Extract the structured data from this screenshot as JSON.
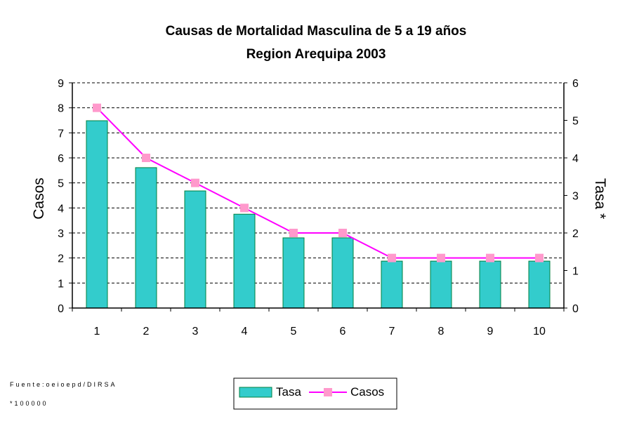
{
  "chart_data": {
    "type": "bar",
    "title": "Causas de Mortalidad Masculina de 5 a 19 años",
    "subtitle": "Region Arequipa 2003",
    "categories": [
      "1",
      "2",
      "3",
      "4",
      "5",
      "6",
      "7",
      "8",
      "9",
      "10"
    ],
    "series": [
      {
        "name": "Tasa",
        "type": "bar",
        "axis": "right",
        "color": "#33CCCC",
        "values": [
          4.99,
          3.74,
          3.12,
          2.5,
          1.87,
          1.87,
          1.25,
          1.25,
          1.25,
          1.25
        ]
      },
      {
        "name": "Casos",
        "type": "line",
        "axis": "left",
        "color": "#FF00FF",
        "marker_color": "#FF99CC",
        "values": [
          8,
          6,
          5,
          4,
          3,
          3,
          2,
          2,
          2,
          2
        ]
      }
    ],
    "ylabel": "Casos",
    "y2label": "Tasa *",
    "ylim": [
      0,
      9
    ],
    "y2lim": [
      0,
      6
    ],
    "yticks": [
      "0",
      "1",
      "2",
      "3",
      "4",
      "5",
      "6",
      "7",
      "8",
      "9"
    ],
    "y2ticks": [
      "0",
      "1",
      "2",
      "3",
      "4",
      "5",
      "6"
    ],
    "grid": true,
    "legend": "bottom"
  },
  "footnotes": {
    "source": "Fuente:oeioepd/DIRSA",
    "rate": "*100000"
  }
}
